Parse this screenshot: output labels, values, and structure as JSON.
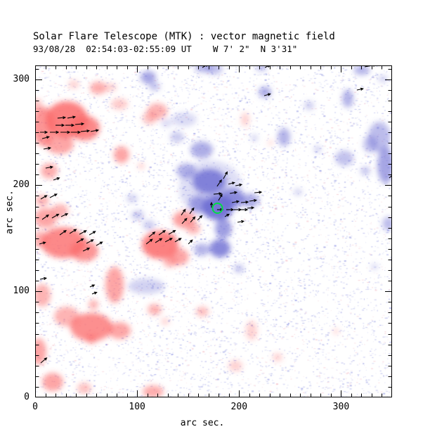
{
  "chart_data": {
    "type": "heatmap",
    "title": "Solar Flare Telescope (MTK) : vector magnetic field",
    "subtitle": "93/08/28  02:54:03-02:55:09 UT    W 7' 2\"  N 3'31\"",
    "xlabel": "arc sec.",
    "ylabel": "arc sec.",
    "xlim": [
      0,
      350
    ],
    "ylim": [
      0,
      313
    ],
    "xticks": [
      0,
      100,
      200,
      300
    ],
    "yticks": [
      0,
      100,
      200,
      300
    ],
    "minor_tick_step": 10,
    "grid": false,
    "legend": "none",
    "colors": {
      "negative_polarity": "#fb6a6a",
      "positive_polarity": "#6a6ad2",
      "marker": "#00dd44",
      "axis": "#000000",
      "noise_positive": "#9aa0e0",
      "noise_negative": "#f4bfc4"
    },
    "red_blobs": [
      [
        31.0,
        262.0,
        20.7,
        17.2,
        0.85
      ],
      [
        48.2,
        254.0,
        15.2,
        11.9,
        0.8
      ],
      [
        8.3,
        255.3,
        11.0,
        18.6,
        0.7
      ],
      [
        24.1,
        238.7,
        13.8,
        9.3,
        0.6
      ],
      [
        62.0,
        291.8,
        8.3,
        6.0,
        0.55
      ],
      [
        37.9,
        295.1,
        5.5,
        4.0,
        0.3
      ],
      [
        84.7,
        228.8,
        7.6,
        8.0,
        0.6
      ],
      [
        119.9,
        269.9,
        10.0,
        7.5,
        0.5
      ],
      [
        112.3,
        263.3,
        7.0,
        6.0,
        0.4
      ],
      [
        104.0,
        218.2,
        3.4,
        2.7,
        0.35
      ],
      [
        206.0,
        262.0,
        4.1,
        6.6,
        0.3
      ],
      [
        230.8,
        240.1,
        2.8,
        2.7,
        0.25
      ],
      [
        27.6,
        145.9,
        22.0,
        14.6,
        0.8
      ],
      [
        48.2,
        137.9,
        13.8,
        9.9,
        0.7
      ],
      [
        4.8,
        149.2,
        6.9,
        8.0,
        0.5
      ],
      [
        122.6,
        143.9,
        17.9,
        13.3,
        0.85
      ],
      [
        141.2,
        132.6,
        9.6,
        8.0,
        0.6
      ],
      [
        132.3,
        128.0,
        6.9,
        5.3,
        0.5
      ],
      [
        77.9,
        106.1,
        9.0,
        17.2,
        0.6
      ],
      [
        6.9,
        96.2,
        8.3,
        10.6,
        0.5
      ],
      [
        55.1,
        66.3,
        20.7,
        13.3,
        0.75
      ],
      [
        82.7,
        63.0,
        11.0,
        8.0,
        0.6
      ],
      [
        31.0,
        76.3,
        12.4,
        9.3,
        0.5
      ],
      [
        57.2,
        87.5,
        4.8,
        4.6,
        0.5
      ],
      [
        117.1,
        82.9,
        6.9,
        5.3,
        0.5
      ],
      [
        164.0,
        80.9,
        6.2,
        4.6,
        0.45
      ],
      [
        127.5,
        71.6,
        4.1,
        3.3,
        0.3
      ],
      [
        55.1,
        55.0,
        5.5,
        4.6,
        0.5
      ],
      [
        3.4,
        43.1,
        7.6,
        12.6,
        0.6
      ],
      [
        17.2,
        14.6,
        10.3,
        8.6,
        0.6
      ],
      [
        48.2,
        8.6,
        6.9,
        5.3,
        0.4
      ],
      [
        115.7,
        5.3,
        10.3,
        6.0,
        0.55
      ],
      [
        212.2,
        63.0,
        5.5,
        9.3,
        0.3
      ],
      [
        196.4,
        29.8,
        6.9,
        5.3,
        0.3
      ],
      [
        237.7,
        37.8,
        4.8,
        4.0,
        0.3
      ],
      [
        294.9,
        62.3,
        2.8,
        2.7,
        0.3
      ],
      [
        146.1,
        167.8,
        11.0,
        8.0,
        0.65
      ],
      [
        155.0,
        159.2,
        6.9,
        5.3,
        0.5
      ],
      [
        1.4,
        275.2,
        5.5,
        6.6,
        0.4
      ],
      [
        13.8,
        213.5,
        8.3,
        7.3,
        0.55
      ],
      [
        10.3,
        169.1,
        11.0,
        9.3,
        0.6
      ],
      [
        24.1,
        175.7,
        8.3,
        6.6,
        0.5
      ],
      [
        6.9,
        185.7,
        6.9,
        5.3,
        0.5
      ],
      [
        82.7,
        276.5,
        8.3,
        5.3,
        0.35
      ],
      [
        74.4,
        292.4,
        5.5,
        4.0,
        0.3
      ]
    ],
    "blue_blobs": [
      [
        110.9,
        301.7,
        7.6,
        6.0,
        0.6
      ],
      [
        117.1,
        293.1,
        5.5,
        4.0,
        0.4
      ],
      [
        165.4,
        311.0,
        9.0,
        4.6,
        0.5
      ],
      [
        175.7,
        309.7,
        8.3,
        5.3,
        0.4
      ],
      [
        221.9,
        311.0,
        5.5,
        3.3,
        0.45
      ],
      [
        320.4,
        308.4,
        8.0,
        4.6,
        0.5
      ],
      [
        341.0,
        300.4,
        4.8,
        3.3,
        0.3
      ],
      [
        225.3,
        287.8,
        6.2,
        5.3,
        0.55
      ],
      [
        306.6,
        281.8,
        5.5,
        8.6,
        0.5
      ],
      [
        268.7,
        275.2,
        4.8,
        4.0,
        0.35
      ],
      [
        243.9,
        245.4,
        6.2,
        8.6,
        0.5
      ],
      [
        215.0,
        244.7,
        3.4,
        3.3,
        0.3
      ],
      [
        277.0,
        234.1,
        3.4,
        3.3,
        0.35
      ],
      [
        257.7,
        193.6,
        4.1,
        3.3,
        0.3
      ],
      [
        323.8,
        213.5,
        4.8,
        4.0,
        0.4
      ],
      [
        337.6,
        245.4,
        11.0,
        14.6,
        0.45
      ],
      [
        343.8,
        218.8,
        8.3,
        17.2,
        0.6
      ],
      [
        303.2,
        225.5,
        9.0,
        7.3,
        0.4
      ],
      [
        328.6,
        238.7,
        6.9,
        8.0,
        0.4
      ],
      [
        346.6,
        163.8,
        6.2,
        6.6,
        0.45
      ],
      [
        163.3,
        233.4,
        11.0,
        8.0,
        0.55
      ],
      [
        148.1,
        213.5,
        9.6,
        7.3,
        0.5
      ],
      [
        170.9,
        203.6,
        16.5,
        11.9,
        0.8
      ],
      [
        179.1,
        179.0,
        15.2,
        11.9,
        0.9
      ],
      [
        160.5,
        182.4,
        9.6,
        8.0,
        0.6
      ],
      [
        192.9,
        187.7,
        12.4,
        9.3,
        0.7
      ],
      [
        210.8,
        185.7,
        9.0,
        6.6,
        0.55
      ],
      [
        184.6,
        159.2,
        8.3,
        9.3,
        0.65
      ],
      [
        181.2,
        140.6,
        10.3,
        8.6,
        0.8
      ],
      [
        172.2,
        197.0,
        31.0,
        26.5,
        0.22
      ],
      [
        95.1,
        187.7,
        5.5,
        4.0,
        0.3
      ],
      [
        100.6,
        171.8,
        6.2,
        4.6,
        0.35
      ],
      [
        111.6,
        162.5,
        6.2,
        4.6,
        0.35
      ],
      [
        108.9,
        104.8,
        17.9,
        7.3,
        0.3
      ],
      [
        163.3,
        139.3,
        7.6,
        6.0,
        0.5
      ],
      [
        199.8,
        121.4,
        4.8,
        4.0,
        0.4
      ],
      [
        332.8,
        123.3,
        3.4,
        2.7,
        0.3
      ],
      [
        128.8,
        258.6,
        5.5,
        4.0,
        0.25
      ],
      [
        139.2,
        245.4,
        6.9,
        5.3,
        0.35
      ],
      [
        146.1,
        262.0,
        12.4,
        6.6,
        0.25
      ]
    ],
    "vectors": [
      [
        22.0,
        263.3,
        5,
        11
      ],
      [
        31.7,
        263.3,
        10,
        11
      ],
      [
        20.0,
        256.6,
        0,
        12
      ],
      [
        29.6,
        256.6,
        0,
        12
      ],
      [
        39.3,
        257.3,
        5,
        12
      ],
      [
        4.8,
        250.0,
        0,
        10
      ],
      [
        14.5,
        250.0,
        0,
        12
      ],
      [
        24.8,
        250.0,
        0,
        13
      ],
      [
        35.1,
        250.0,
        0,
        13
      ],
      [
        44.8,
        250.7,
        5,
        12
      ],
      [
        54.4,
        250.7,
        10,
        11
      ],
      [
        6.9,
        244.0,
        15,
        10
      ],
      [
        8.3,
        234.1,
        10,
        10
      ],
      [
        10.3,
        216.2,
        10,
        10
      ],
      [
        17.9,
        204.9,
        20,
        9
      ],
      [
        5.5,
        187.0,
        30,
        10
      ],
      [
        14.5,
        188.3,
        28,
        11
      ],
      [
        6.9,
        167.8,
        35,
        11
      ],
      [
        16.5,
        169.1,
        30,
        11
      ],
      [
        25.5,
        170.4,
        25,
        10
      ],
      [
        4.1,
        144.6,
        15,
        9
      ],
      [
        24.1,
        153.2,
        35,
        11
      ],
      [
        33.8,
        154.5,
        32,
        11
      ],
      [
        43.4,
        153.8,
        28,
        11
      ],
      [
        53.1,
        153.2,
        30,
        10
      ],
      [
        40.7,
        145.9,
        30,
        11
      ],
      [
        50.3,
        145.2,
        28,
        11
      ],
      [
        59.9,
        143.2,
        30,
        10
      ],
      [
        46.9,
        137.9,
        25,
        10
      ],
      [
        4.8,
        111.4,
        10,
        9
      ],
      [
        53.7,
        104.1,
        25,
        7
      ],
      [
        55.8,
        97.5,
        20,
        7
      ],
      [
        5.5,
        32.5,
        40,
        11
      ],
      [
        111.6,
        151.2,
        40,
        11
      ],
      [
        121.3,
        153.2,
        35,
        11
      ],
      [
        130.9,
        153.8,
        30,
        11
      ],
      [
        108.9,
        144.6,
        38,
        11
      ],
      [
        117.8,
        145.9,
        32,
        11
      ],
      [
        127.5,
        146.6,
        28,
        11
      ],
      [
        137.1,
        146.6,
        30,
        10
      ],
      [
        150.2,
        144.6,
        45,
        8
      ],
      [
        184.6,
        206.2,
        60,
        11
      ],
      [
        178.4,
        199.0,
        55,
        11
      ],
      [
        189.5,
        201.0,
        15,
        9
      ],
      [
        196.4,
        199.6,
        10,
        9
      ],
      [
        175.0,
        191.6,
        5,
        11
      ],
      [
        190.9,
        192.3,
        10,
        10
      ],
      [
        215.0,
        193.0,
        5,
        10
      ],
      [
        179.8,
        185.7,
        60,
        10
      ],
      [
        192.9,
        183.7,
        10,
        10
      ],
      [
        201.9,
        183.7,
        5,
        10
      ],
      [
        210.1,
        185.0,
        8,
        10
      ],
      [
        172.9,
        179.0,
        90,
        7
      ],
      [
        178.4,
        177.0,
        0,
        8
      ],
      [
        187.4,
        177.0,
        0,
        10
      ],
      [
        195.0,
        177.0,
        0,
        10
      ],
      [
        201.9,
        177.0,
        0,
        9
      ],
      [
        208.1,
        178.4,
        5,
        9
      ],
      [
        186.0,
        170.4,
        30,
        7
      ],
      [
        198.4,
        165.1,
        10,
        9
      ],
      [
        143.3,
        171.8,
        55,
        10
      ],
      [
        151.6,
        173.1,
        55,
        10
      ],
      [
        144.0,
        163.8,
        48,
        10
      ],
      [
        152.3,
        165.1,
        50,
        10
      ],
      [
        159.2,
        167.1,
        45,
        9
      ],
      [
        224.6,
        284.5,
        15,
        9
      ],
      [
        225.3,
        311.0,
        25,
        8
      ],
      [
        164.0,
        311.0,
        30,
        9
      ],
      [
        323.1,
        311.7,
        10,
        16
      ],
      [
        315.5,
        289.8,
        12,
        9
      ],
      [
        347.2,
        206.9,
        40,
        8
      ]
    ],
    "marker": {
      "x": 178.8,
      "y": 178.4,
      "radius_px": 7
    },
    "noise": {
      "seed": 123457,
      "blue_count": 5300,
      "pink_count": 1500
    }
  }
}
